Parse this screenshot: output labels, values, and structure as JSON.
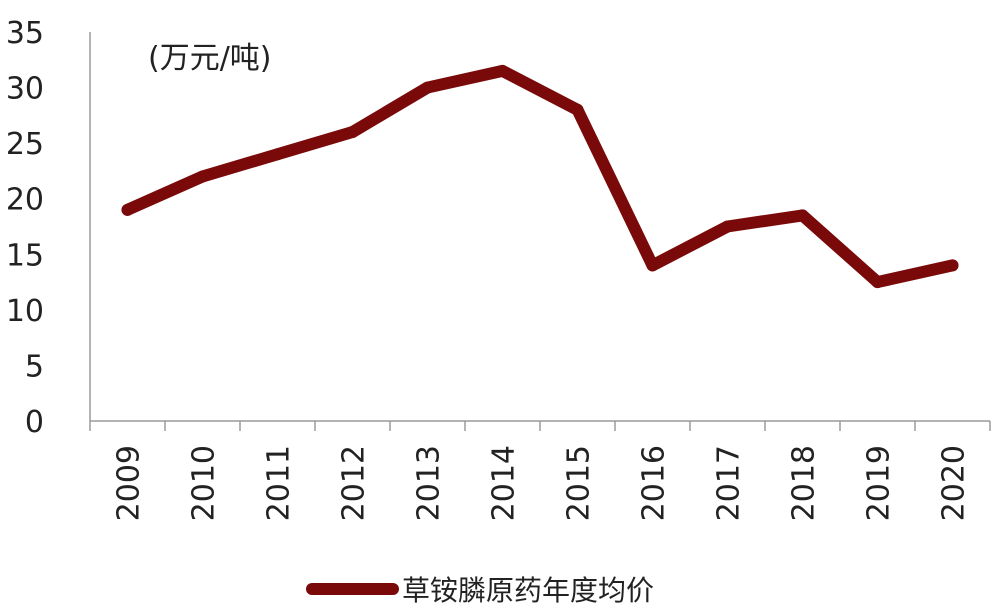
{
  "chart_data": {
    "type": "line",
    "unit_label": "(万元/吨)",
    "categories": [
      "2009",
      "2010",
      "2011",
      "2012",
      "2013",
      "2014",
      "2015",
      "2016",
      "2017",
      "2018",
      "2019",
      "2020"
    ],
    "series": [
      {
        "name": "草铵膦原药年度均价",
        "color": "#7a0a0a",
        "values": [
          19,
          22,
          24,
          26,
          30,
          31.5,
          28,
          14,
          17.5,
          18.5,
          12.5,
          14
        ]
      }
    ],
    "ylim": [
      0,
      35
    ],
    "yticks": [
      0,
      5,
      10,
      15,
      20,
      25,
      30,
      35
    ],
    "grid": false,
    "legend_position": "bottom-center"
  }
}
